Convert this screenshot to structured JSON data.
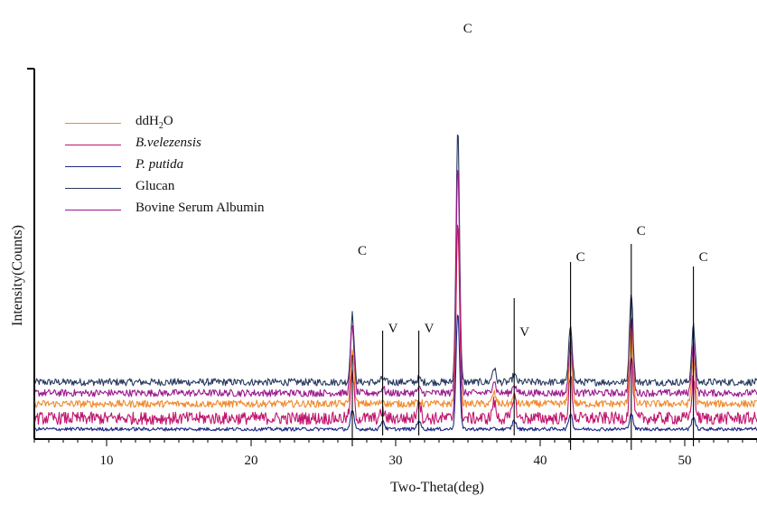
{
  "chart_data": {
    "type": "line",
    "xlabel": "Two-Theta(deg)",
    "ylabel": "Intensity(Counts)",
    "xlim": [
      5,
      55
    ],
    "x_ticks": [
      10,
      20,
      30,
      40,
      50
    ],
    "series": [
      {
        "name": "Glucan",
        "color": "#283a5e",
        "baseline": 52,
        "noise": 4,
        "peaks": [
          [
            27.0,
            75
          ],
          [
            29.1,
            4
          ],
          [
            31.6,
            4
          ],
          [
            34.3,
            280
          ],
          [
            36.8,
            16
          ],
          [
            38.2,
            8
          ],
          [
            42.1,
            64
          ],
          [
            46.3,
            100
          ],
          [
            50.6,
            62
          ]
        ]
      },
      {
        "name": "Bovine Serum Albumin",
        "color": "#9b1a8e",
        "baseline": 40,
        "noise": 4,
        "peaks": [
          [
            27.0,
            75
          ],
          [
            29.1,
            6
          ],
          [
            31.6,
            5
          ],
          [
            34.3,
            254
          ],
          [
            36.8,
            14
          ],
          [
            38.2,
            10
          ],
          [
            42.1,
            58
          ],
          [
            46.3,
            82
          ],
          [
            50.6,
            54
          ]
        ]
      },
      {
        "name": "ddH2O",
        "color": "#f08a2c",
        "baseline": 28,
        "noise": 4,
        "peaks": [
          [
            27.0,
            58
          ],
          [
            29.1,
            4
          ],
          [
            31.6,
            4
          ],
          [
            34.3,
            198
          ],
          [
            36.8,
            12
          ],
          [
            38.2,
            8
          ],
          [
            42.1,
            56
          ],
          [
            46.3,
            84
          ],
          [
            50.6,
            50
          ]
        ]
      },
      {
        "name": "B.velezensis",
        "color": "#c0166e",
        "baseline": 12,
        "noise": 7,
        "peaks": [
          [
            27.0,
            50
          ],
          [
            29.1,
            8
          ],
          [
            31.6,
            22
          ],
          [
            34.3,
            220
          ],
          [
            36.8,
            18
          ],
          [
            38.2,
            26
          ],
          [
            42.1,
            46
          ],
          [
            46.3,
            70
          ],
          [
            50.6,
            44
          ]
        ]
      },
      {
        "name": "P. putida",
        "color": "#1f2a88",
        "baseline": 0,
        "noise": 2,
        "peaks": [
          [
            27.0,
            20
          ],
          [
            29.1,
            10
          ],
          [
            31.6,
            10
          ],
          [
            34.3,
            130
          ],
          [
            38.2,
            10
          ],
          [
            42.1,
            18
          ],
          [
            46.3,
            18
          ],
          [
            50.6,
            14
          ]
        ]
      }
    ],
    "peak_markers": [
      {
        "label": "C",
        "x": 27.0
      },
      {
        "label": "V",
        "x": 29.1
      },
      {
        "label": "V",
        "x": 31.6
      },
      {
        "label": "C",
        "x": 34.3
      },
      {
        "label": "V",
        "x": 38.2
      },
      {
        "label": "C",
        "x": 42.1
      },
      {
        "label": "C",
        "x": 46.3
      },
      {
        "label": "C",
        "x": 50.6
      }
    ]
  },
  "legend": {
    "items": [
      {
        "label": "ddH",
        "sub": "2",
        "tail": "O",
        "color": "#f08a2c",
        "italic": false
      },
      {
        "label": "B.velezensis",
        "sub": "",
        "tail": "",
        "color": "#c0166e",
        "italic": true
      },
      {
        "label": "P. putida",
        "sub": "",
        "tail": "",
        "color": "#1f2a88",
        "italic": true
      },
      {
        "label": "Glucan",
        "sub": "",
        "tail": "",
        "color": "#283a5e",
        "italic": false
      },
      {
        "label": "Bovine Serum Albumin",
        "sub": "",
        "tail": "",
        "color": "#9b1a8e",
        "italic": false
      }
    ]
  }
}
